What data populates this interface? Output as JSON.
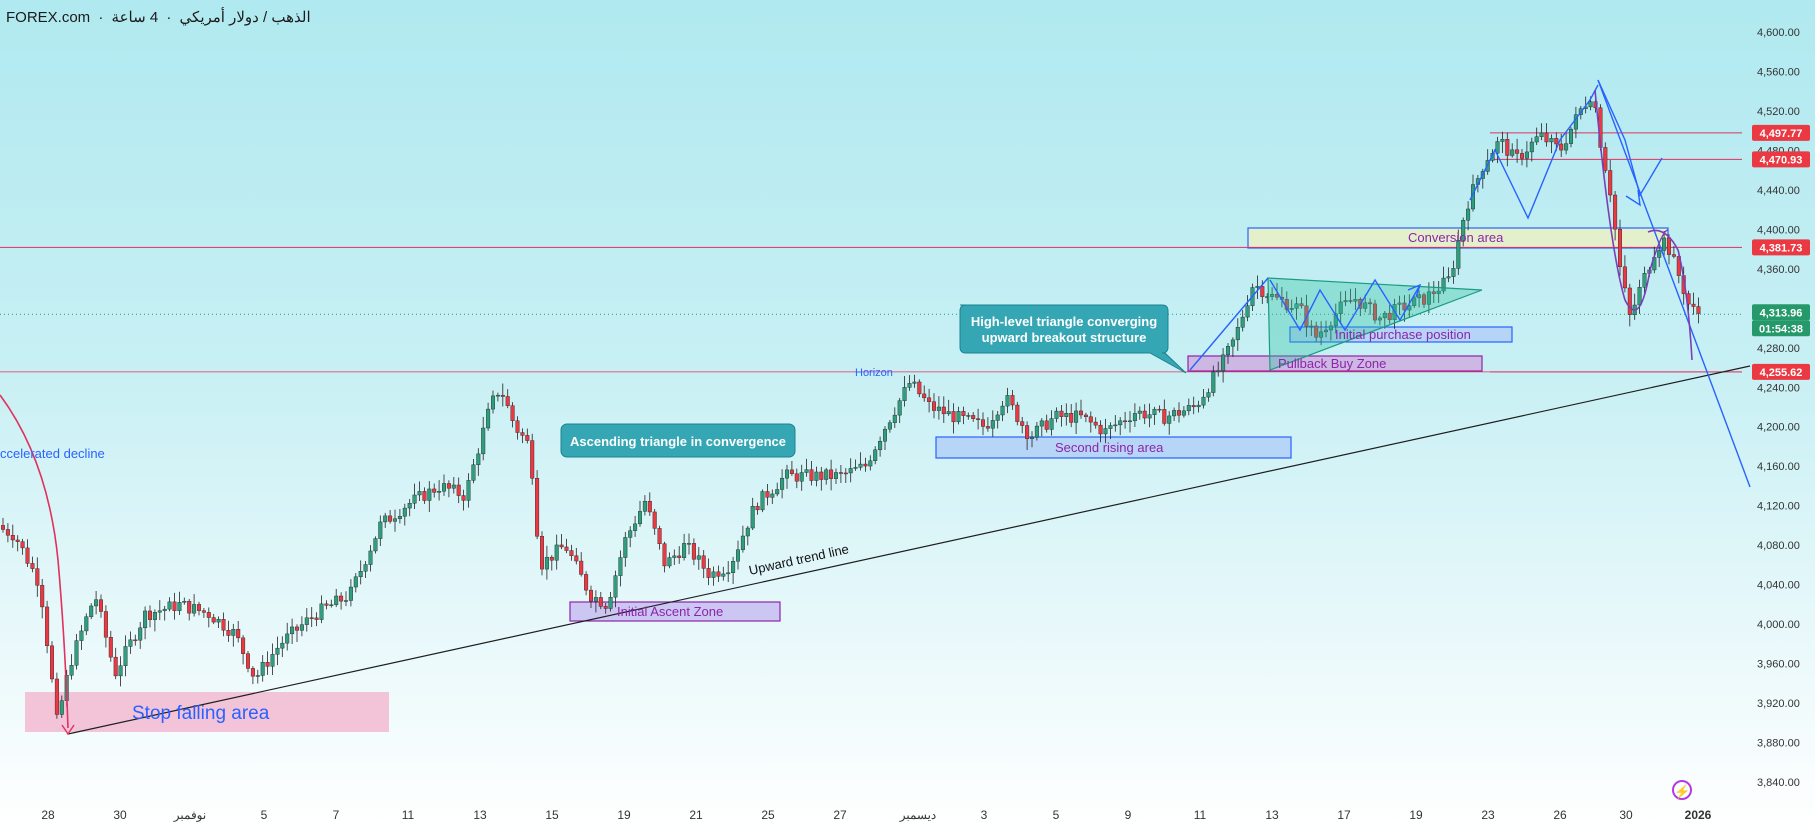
{
  "header": {
    "broker": "FOREX.com",
    "dot": "·",
    "symbol": "الذهب / دولار أمريكي",
    "timeframe": "4 ساعة"
  },
  "colors": {
    "background_top": "#b0e9f0",
    "bull": "#2e9e7e",
    "bear": "#ea3943",
    "trend_line": "#1e1e1e",
    "blue_lines": "#2962ff",
    "horizontal_lines": "#e0315f",
    "price_label_red": "#ea3943",
    "current_price_green": "#26996a"
  },
  "x_axis": {
    "labels": [
      "28",
      "30",
      "نوفمبر",
      "5",
      "7",
      "11",
      "13",
      "15",
      "19",
      "21",
      "25",
      "27",
      "ديسمبر",
      "3",
      "5",
      "9",
      "11",
      "13",
      "17",
      "19",
      "23",
      "26",
      "30",
      "2026"
    ]
  },
  "y_axis": {
    "labels": [
      "4,600.00",
      "4,560.00",
      "4,520.00",
      "4,480.00",
      "4,440.00",
      "4,400.00",
      "4,360.00",
      "4,320.00",
      "4,280.00",
      "4,240.00",
      "4,200.00",
      "4,160.00",
      "4,120.00",
      "4,080.00",
      "4,040.00",
      "4,000.00",
      "3,960.00",
      "3,920.00",
      "3,880.00",
      "3,840.00"
    ]
  },
  "price_labels": [
    {
      "value": "4,497.77",
      "kind": "red"
    },
    {
      "value": "4,470.93",
      "kind": "red"
    },
    {
      "value": "4,381.73",
      "kind": "red"
    },
    {
      "value": "4,313.96",
      "kind": "green"
    },
    {
      "value": "01:54:38",
      "kind": "green-sub"
    },
    {
      "value": "4,255.62",
      "kind": "red"
    }
  ],
  "annotations": {
    "accelerated_decline": "ccelerated decline",
    "stop_falling_area": "Stop falling area",
    "initial_ascent_zone": "Initial Ascent Zone",
    "upward_trend_line": "Upward trend line",
    "ascending_triangle": "Ascending triangle in convergence",
    "second_rising_area": "Second rising area",
    "horizon": "Horizon",
    "high_level_triangle_1": "High-level triangle converging",
    "high_level_triangle_2": "upward breakout structure",
    "pullback_buy_zone": "Pullback Buy Zone",
    "initial_purchase_position": "Initial purchase position",
    "conversion_area": "Conversion area"
  },
  "chart_data": {
    "type": "candlestick",
    "symbol": "الذهب / دولار أمريكي",
    "timeframe": "4 ساعة",
    "ylim": [
      3840,
      4600
    ],
    "x": [
      "28",
      "30",
      "نوفمبر",
      "5",
      "7",
      "11",
      "13",
      "15",
      "19",
      "21",
      "25",
      "27",
      "ديسمبر",
      "3",
      "5",
      "9",
      "11",
      "13",
      "17",
      "19",
      "23",
      "26",
      "30",
      "2026"
    ],
    "close_path": [
      [
        "28",
        4065
      ],
      [
        "28b",
        4020
      ],
      [
        "28c",
        3895
      ],
      [
        "30",
        4035
      ],
      [
        "30b",
        3940
      ],
      [
        "نوفمبر",
        4020
      ],
      [
        "نوفمبر b",
        4010
      ],
      [
        "5",
        3960
      ],
      [
        "5b",
        3950
      ],
      [
        "7",
        3990
      ],
      [
        "7b",
        4010
      ],
      [
        "11",
        4140
      ],
      [
        "11b",
        4130
      ],
      [
        "13",
        4225
      ],
      [
        "13b",
        4180
      ],
      [
        "15",
        4090
      ],
      [
        "15b",
        4050
      ],
      [
        "19",
        4010
      ],
      [
        "19b",
        4095
      ],
      [
        "21",
        4060
      ],
      [
        "21b",
        4050
      ],
      [
        "25",
        4130
      ],
      [
        "25b",
        4155
      ],
      [
        "27",
        4150
      ],
      [
        "27b",
        4180
      ],
      [
        "ديسمبر",
        4245
      ],
      [
        "3",
        4205
      ],
      [
        "3b",
        4190
      ],
      [
        "5",
        4210
      ],
      [
        "5b",
        4230
      ],
      [
        "9",
        4200
      ],
      [
        "9b",
        4210
      ],
      [
        "11",
        4240
      ],
      [
        "11b",
        4300
      ],
      [
        "13",
        4345
      ],
      [
        "13b",
        4310
      ],
      [
        "17",
        4290
      ],
      [
        "17b",
        4330
      ],
      [
        "19",
        4320
      ],
      [
        "19b",
        4340
      ],
      [
        "23",
        4440
      ],
      [
        "23b",
        4495
      ],
      [
        "26",
        4480
      ],
      [
        "26b",
        4545
      ],
      [
        "30",
        4320
      ],
      [
        "30b",
        4395
      ],
      [
        "2026",
        4313.96
      ]
    ],
    "horizontal_levels": [
      4497.77,
      4470.93,
      4381.73,
      4255.62
    ],
    "current_price": 4313.96
  }
}
